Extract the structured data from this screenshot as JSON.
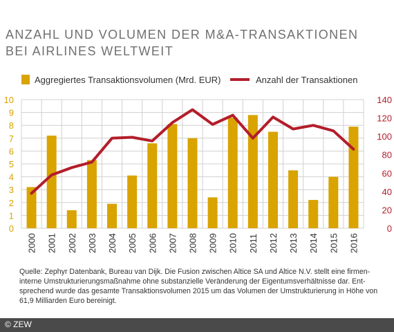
{
  "title": {
    "line1": "ANZAHL UND VOLUMEN DER M&A-TRANSAKTIONEN",
    "line2": "BEI AIRLINES WELTWEIT"
  },
  "colors": {
    "bars": "#d9a300",
    "line": "#b31d2a",
    "left_axis": "#d9a300",
    "right_axis": "#b31d2a",
    "grid": "#d0d0d0"
  },
  "chart_data": {
    "type": "bar",
    "categories": [
      "2000",
      "2001",
      "2002",
      "2003",
      "2004",
      "2005",
      "2006",
      "2007",
      "2008",
      "2009",
      "2010",
      "2011",
      "2012",
      "2013",
      "2014",
      "2015",
      "2016"
    ],
    "series": [
      {
        "name": "Aggregiertes Transaktionsvolumen (Mrd. EUR)",
        "type": "bar",
        "axis": "left",
        "values": [
          3.2,
          7.2,
          1.4,
          5.3,
          1.9,
          4.1,
          6.6,
          8.1,
          7.0,
          2.4,
          8.6,
          8.8,
          7.5,
          4.5,
          2.2,
          4.0,
          7.9
        ]
      },
      {
        "name": "Anzahl der Transaktionen",
        "type": "line",
        "axis": "right",
        "values": [
          38,
          58,
          66,
          72,
          98,
          99,
          95,
          115,
          129,
          113,
          123,
          98,
          121,
          108,
          112,
          106,
          86
        ]
      }
    ],
    "y_left": {
      "ylim": [
        0,
        10
      ],
      "ticks": [
        "0",
        "1",
        "2",
        "3",
        "4",
        "5",
        "6",
        "7",
        "8",
        "9",
        "10"
      ]
    },
    "y_right": {
      "ylim": [
        0,
        140
      ],
      "ticks": [
        "0",
        "20",
        "40",
        "60",
        "80",
        "100",
        "120",
        "140"
      ]
    },
    "grid": true,
    "legend_position": "top"
  },
  "source": "Quelle: Zephyr Datenbank, Bureau van Dijk. Die Fusion zwischen Altice SA und Altice N.V. stellt eine firmen­interne Umstrukturierungsmaßnahme ohne substanzielle Veränderung der Eigentumsverhältnisse dar. Ent­sprechend wurde das gesamte Transaktionsvolumen 2015 um das Volumen der Umstrukturierung in Höhe von 61,9 Milliarden Euro bereinigt.",
  "footer": "© ZEW"
}
